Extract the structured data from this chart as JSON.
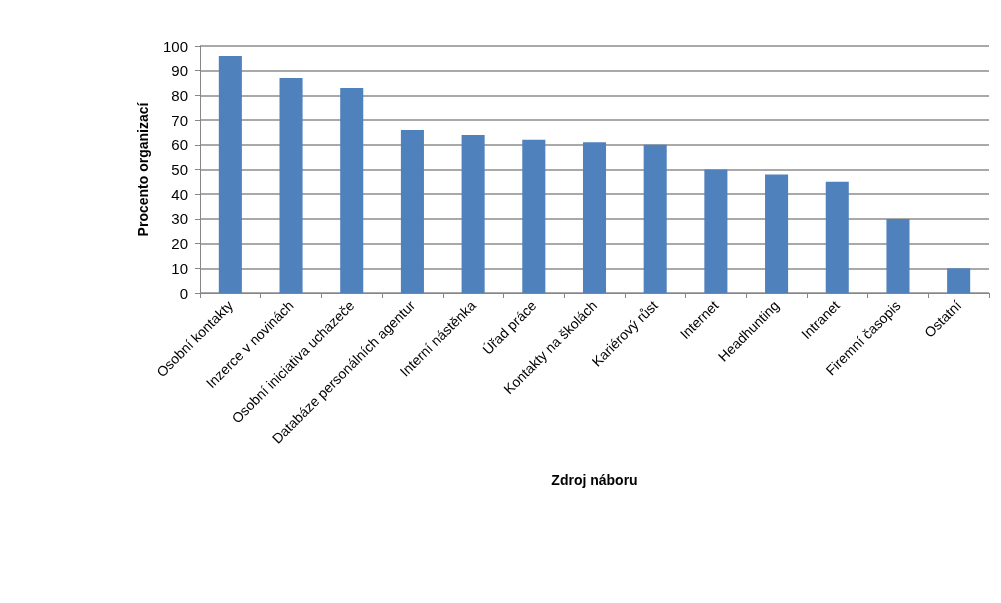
{
  "chart_data": {
    "type": "bar",
    "xlabel": "Zdroj náboru",
    "ylabel": "Procento organizací",
    "categories": [
      "Osobní kontakty",
      "Inzerce v novinách",
      "Osobní iniciativa uchazeče",
      "Databáze personálních agentur",
      "Interní nástěnka",
      "Úřad práce",
      "Kontakty na školách",
      "Kariérový růst",
      "Internet",
      "Headhunting",
      "Intranet",
      "Firemní časopis",
      "Ostatní"
    ],
    "values": [
      96,
      87,
      83,
      66,
      64,
      62,
      61,
      60,
      50,
      48,
      45,
      30,
      10
    ],
    "color": "#4f81bd",
    "ylim": [
      0,
      100
    ],
    "yticks": [
      0,
      10,
      20,
      30,
      40,
      50,
      60,
      70,
      80,
      90,
      100
    ],
    "grid": "y"
  }
}
